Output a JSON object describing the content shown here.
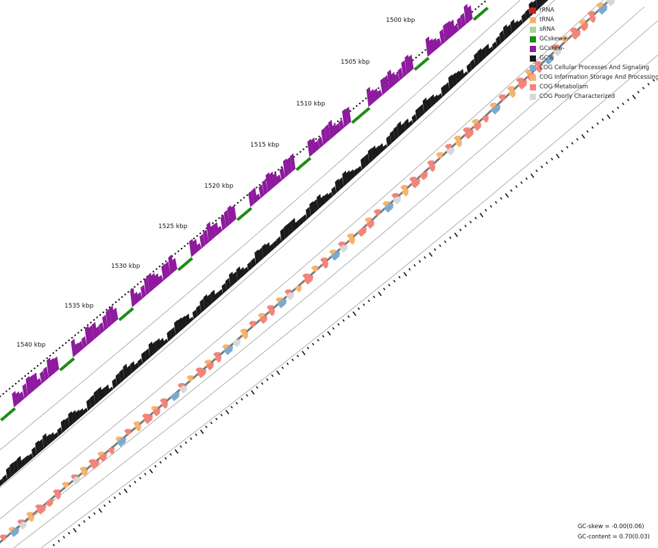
{
  "map": {
    "ticks": [
      {
        "label": "1500 kbp"
      },
      {
        "label": "1505 kbp"
      },
      {
        "label": "1510 kbp"
      },
      {
        "label": "1515 kbp"
      },
      {
        "label": "1520 kbp"
      },
      {
        "label": "1525 kbp"
      },
      {
        "label": "1530 kbp"
      },
      {
        "label": "1535 kbp"
      },
      {
        "label": "1540 kbp"
      }
    ]
  },
  "legend": [
    {
      "label": "rRNA",
      "color": "#cc1f1f"
    },
    {
      "label": "tRNA",
      "color": "#f7b36b"
    },
    {
      "label": "sRNA",
      "color": "#a8d5a0"
    },
    {
      "label": "GCskew+",
      "color": "#1a8c12"
    },
    {
      "label": "GCskew-",
      "color": "#8e1a9e"
    },
    {
      "label": "GC%",
      "color": "#1a1a1a"
    },
    {
      "label": "COG Cellular Processes And Signaling",
      "color": "#7ea9cf"
    },
    {
      "label": "COG Information Storage And Processing",
      "color": "#f7b36b"
    },
    {
      "label": "COG Metabolism",
      "color": "#f2857a"
    },
    {
      "label": "COG Poorly Characterized",
      "color": "#d8d8d8"
    }
  ],
  "stats": {
    "gc_skew": "GC-skew = -0.00(0.06)",
    "gc_content": "GC-content = 0.70(0.03)"
  }
}
